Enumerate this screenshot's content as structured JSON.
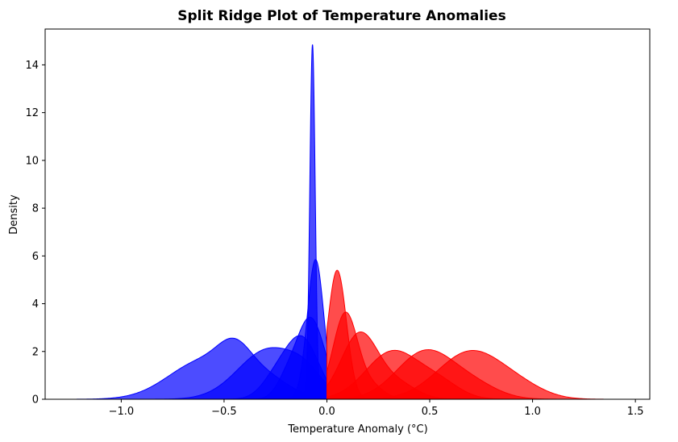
{
  "chart_data": {
    "type": "area",
    "title": "Split Ridge Plot of Temperature Anomalies",
    "xlabel": "Temperature Anomaly (°C)",
    "ylabel": "Density",
    "xlim": [
      -1.37,
      1.57
    ],
    "ylim": [
      0,
      15.5
    ],
    "x_ticks": [
      -1.0,
      -0.5,
      0.0,
      0.5,
      1.0,
      1.5
    ],
    "x_tick_labels": [
      "−1.0",
      "−0.5",
      "0.0",
      "0.5",
      "1.0",
      "1.5"
    ],
    "y_ticks": [
      0,
      2,
      4,
      6,
      8,
      10,
      12,
      14
    ],
    "y_tick_labels": [
      "0",
      "2",
      "4",
      "6",
      "8",
      "10",
      "12",
      "14"
    ],
    "grid": false,
    "legend": "none",
    "colors": {
      "negative": "#0000ff",
      "positive": "#ff0000"
    },
    "fill_alpha": 0.7,
    "series": [
      {
        "side": "negative",
        "x_range": [
          -1.32,
          0.0
        ],
        "peaks": [
          {
            "x": -0.6,
            "h": 1.6,
            "w": 0.17
          },
          {
            "x": -0.45,
            "h": 1.1,
            "w": 0.08
          },
          {
            "x": -0.3,
            "h": 0.8,
            "w": 0.12
          }
        ]
      },
      {
        "side": "negative",
        "x_range": [
          -0.9,
          0.0
        ],
        "peaks": [
          {
            "x": -0.28,
            "h": 2.1,
            "w": 0.15
          },
          {
            "x": -0.1,
            "h": 0.6,
            "w": 0.08
          }
        ]
      },
      {
        "side": "negative",
        "x_range": [
          -0.55,
          0.0
        ],
        "peaks": [
          {
            "x": -0.12,
            "h": 2.5,
            "w": 0.08
          },
          {
            "x": -0.25,
            "h": 0.8,
            "w": 0.07
          }
        ]
      },
      {
        "side": "negative",
        "x_range": [
          -0.45,
          0.0
        ],
        "peaks": [
          {
            "x": -0.08,
            "h": 3.4,
            "w": 0.07
          },
          {
            "x": -0.2,
            "h": 0.6,
            "w": 0.05
          }
        ]
      },
      {
        "side": "negative",
        "x_range": [
          -0.3,
          0.0
        ],
        "peaks": [
          {
            "x": -0.055,
            "h": 5.85,
            "w": 0.04
          }
        ]
      },
      {
        "side": "negative",
        "x_range": [
          -0.25,
          0.0
        ],
        "peaks": [
          {
            "x": -0.07,
            "h": 14.85,
            "w": 0.013
          }
        ]
      },
      {
        "side": "positive",
        "x_range": [
          0.0,
          1.52
        ],
        "peaks": [
          {
            "x": 0.7,
            "h": 2.0,
            "w": 0.16
          },
          {
            "x": 0.95,
            "h": 0.35,
            "w": 0.12
          }
        ]
      },
      {
        "side": "positive",
        "x_range": [
          0.0,
          1.3
        ],
        "peaks": [
          {
            "x": 0.48,
            "h": 2.0,
            "w": 0.14
          },
          {
            "x": 0.72,
            "h": 0.5,
            "w": 0.12
          }
        ]
      },
      {
        "side": "positive",
        "x_range": [
          0.0,
          1.1
        ],
        "peaks": [
          {
            "x": 0.32,
            "h": 2.0,
            "w": 0.13
          },
          {
            "x": 0.55,
            "h": 0.6,
            "w": 0.1
          }
        ]
      },
      {
        "side": "positive",
        "x_range": [
          0.0,
          0.9
        ],
        "peaks": [
          {
            "x": 0.16,
            "h": 2.75,
            "w": 0.09
          },
          {
            "x": 0.35,
            "h": 0.6,
            "w": 0.09
          }
        ]
      },
      {
        "side": "positive",
        "x_range": [
          0.0,
          0.7
        ],
        "peaks": [
          {
            "x": 0.09,
            "h": 3.6,
            "w": 0.06
          },
          {
            "x": 0.22,
            "h": 0.5,
            "w": 0.06
          }
        ]
      },
      {
        "side": "positive",
        "x_range": [
          0.0,
          0.5
        ],
        "peaks": [
          {
            "x": 0.05,
            "h": 5.4,
            "w": 0.045
          }
        ]
      }
    ]
  }
}
